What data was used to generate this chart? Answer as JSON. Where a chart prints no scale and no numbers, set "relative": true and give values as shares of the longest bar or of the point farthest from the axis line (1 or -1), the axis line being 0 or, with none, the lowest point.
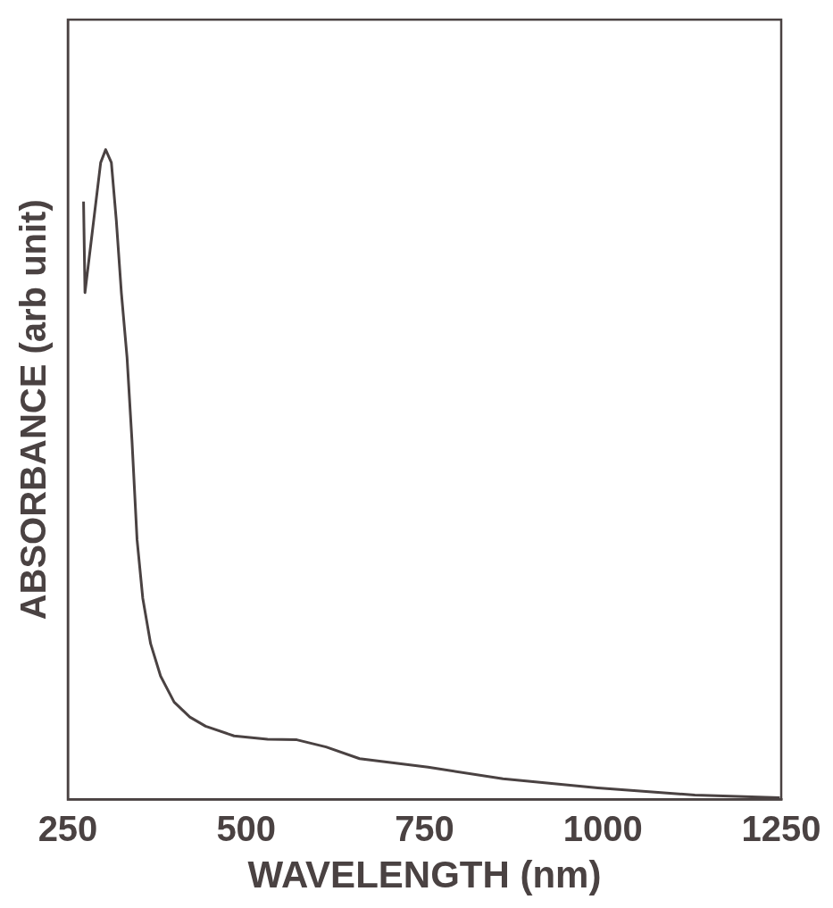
{
  "chart_data": {
    "type": "line",
    "xlabel": "WAVELENGTH (nm)",
    "ylabel": "ABSORBANCE (arb unit)",
    "relative": true,
    "xlim": [
      250,
      1250
    ],
    "xticks": [
      250,
      500,
      750,
      1000,
      1250
    ],
    "grid": false,
    "legend": false,
    "marker": "none",
    "line_style": "solid",
    "series": [
      {
        "color": "#4a4242",
        "x": [
          272,
          274,
          296,
          303,
          311,
          318,
          325,
          333,
          340,
          347,
          355,
          366,
          380,
          399,
          421,
          443,
          483,
          530,
          571,
          612,
          659,
          755,
          860,
          993,
          1129,
          1248
        ],
        "values": [
          0.92,
          0.78,
          0.98,
          1.0,
          0.98,
          0.89,
          0.78,
          0.68,
          0.55,
          0.4,
          0.31,
          0.24,
          0.19,
          0.15,
          0.127,
          0.113,
          0.098,
          0.093,
          0.092,
          0.081,
          0.063,
          0.05,
          0.032,
          0.018,
          0.007,
          0.003
        ]
      }
    ]
  }
}
